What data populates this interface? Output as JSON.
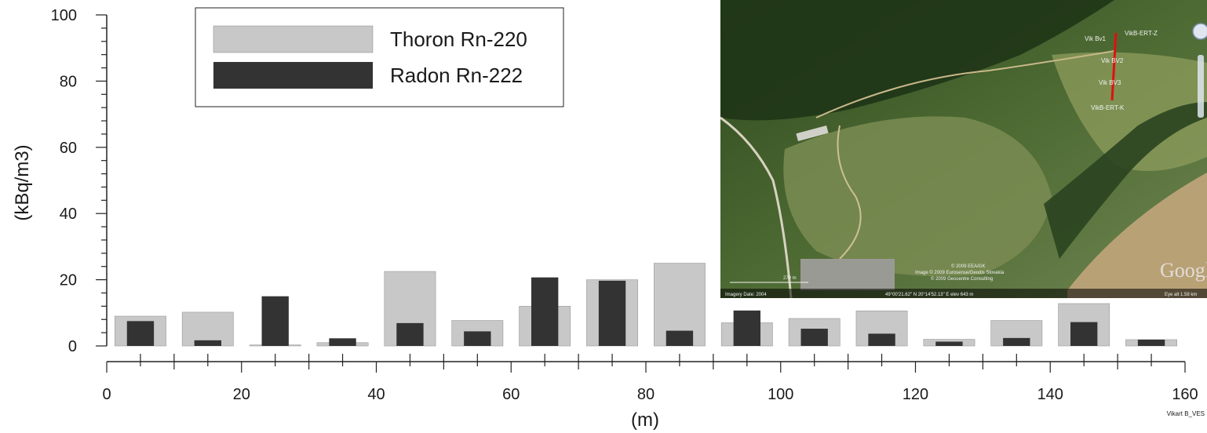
{
  "chart_data": {
    "type": "bar",
    "ylabel": "(kBq/m3)",
    "xlabel": "(m)",
    "ylim": [
      0,
      100
    ],
    "xlim": [
      0,
      160
    ],
    "yticks": [
      0,
      20,
      40,
      60,
      80,
      100
    ],
    "xticks": [
      0,
      20,
      40,
      60,
      80,
      100,
      120,
      140,
      160
    ],
    "grid": false,
    "legend_position": "top-left",
    "x": [
      5,
      15,
      25,
      35,
      45,
      55,
      65,
      75,
      85,
      95,
      105,
      115,
      125,
      135,
      145,
      155
    ],
    "series": [
      {
        "name": "Thoron Rn-220",
        "color": "#c8c8c8",
        "values": [
          9,
          10.2,
          0.3,
          1,
          22.5,
          7.7,
          12,
          20,
          25,
          7,
          8.3,
          10.6,
          2,
          7.7,
          12.8,
          1.9
        ]
      },
      {
        "name": "Radon Rn-222",
        "color": "#333333",
        "values": [
          7.5,
          1.7,
          15,
          2.3,
          6.9,
          4.4,
          20.7,
          19.7,
          4.6,
          10.7,
          5.2,
          3.7,
          1.3,
          2.4,
          7.2,
          1.9
        ]
      }
    ],
    "footnote": "Vikart B_VES"
  },
  "map_inset": {
    "labels": [
      "VikB-ERT-Z",
      "Vik Bv1",
      "Vik BV2",
      "Vik BV3",
      "VikB-ERT-K"
    ],
    "scale_label": "270 m",
    "imagery_date": "Imagery Date: 2004",
    "coords": "49°00'21.62\" N   20°14'52.13\" E   elev  643 m",
    "copyright": [
      "© 2009 EEA/GK",
      "Image © 2009 Eurosense/Geodis Slovakia",
      "© 2009 Geocentre Consulting"
    ],
    "eye_alt": "Eye alt  1.58 km",
    "logo": "Google"
  }
}
